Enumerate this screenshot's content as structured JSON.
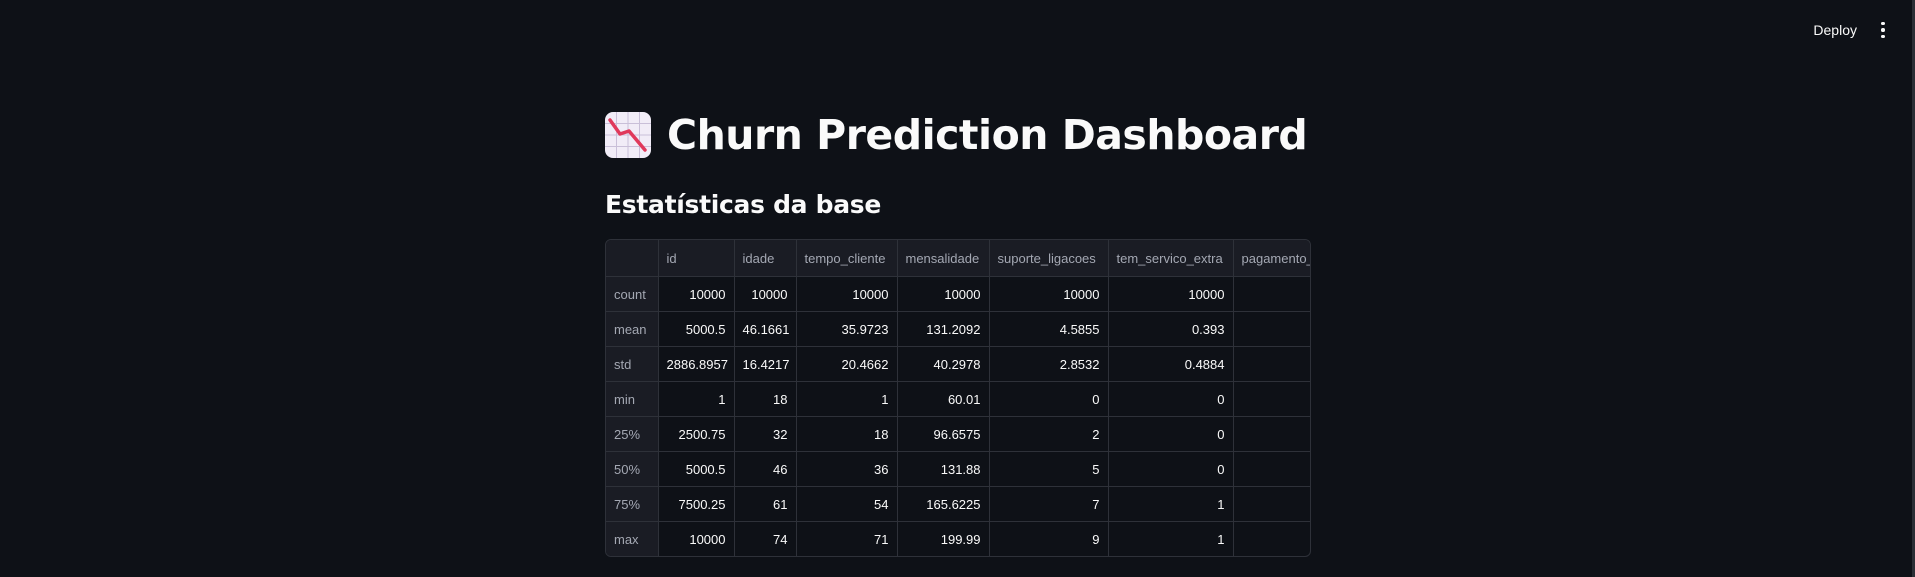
{
  "header": {
    "deploy_label": "Deploy",
    "menu_icon": "vertical-dots-icon"
  },
  "main": {
    "title_icon": "chart-decreasing-icon",
    "title": "Churn Prediction Dashboard",
    "section_title": "Estatísticas da base"
  },
  "table": {
    "columns": [
      "",
      "id",
      "idade",
      "tempo_cliente",
      "mensalidade",
      "suporte_ligacoes",
      "tem_servico_extra",
      "pagamento_"
    ],
    "rows": [
      {
        "label": "count",
        "values": [
          "10000",
          "10000",
          "10000",
          "10000",
          "10000",
          "10000",
          ""
        ]
      },
      {
        "label": "mean",
        "values": [
          "5000.5",
          "46.1661",
          "35.9723",
          "131.2092",
          "4.5855",
          "0.393",
          ""
        ]
      },
      {
        "label": "std",
        "values": [
          "2886.8957",
          "16.4217",
          "20.4662",
          "40.2978",
          "2.8532",
          "0.4884",
          ""
        ]
      },
      {
        "label": "min",
        "values": [
          "1",
          "18",
          "1",
          "60.01",
          "0",
          "0",
          ""
        ]
      },
      {
        "label": "25%",
        "values": [
          "2500.75",
          "32",
          "18",
          "96.6575",
          "2",
          "0",
          ""
        ]
      },
      {
        "label": "50%",
        "values": [
          "5000.5",
          "46",
          "36",
          "131.88",
          "5",
          "0",
          ""
        ]
      },
      {
        "label": "75%",
        "values": [
          "7500.25",
          "61",
          "54",
          "165.6225",
          "7",
          "1",
          ""
        ]
      },
      {
        "label": "max",
        "values": [
          "10000",
          "74",
          "71",
          "199.99",
          "9",
          "1",
          ""
        ]
      }
    ]
  },
  "colors": {
    "background": "#0e1117",
    "text": "#fafafa",
    "muted_text": "#a4a8b3",
    "table_border": "#2e3139",
    "header_bg": "#1a1c24",
    "icon_line": "#e0395b"
  }
}
